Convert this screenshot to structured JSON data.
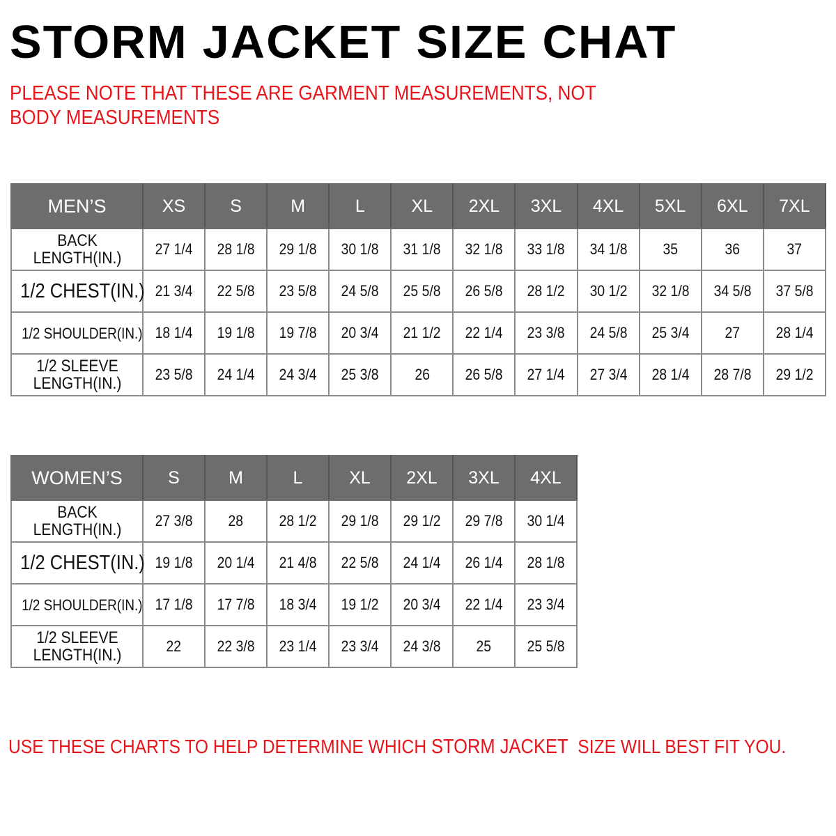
{
  "title": "STORM JACKET SIZE CHAT",
  "note": "PLEASE NOTE THAT THESE ARE GARMENT MEASUREMENTS, NOT BODY MEASUREMENTS",
  "colors": {
    "header_bg": "#6d6d6d",
    "note_red": "#e8141b"
  },
  "mens": {
    "label": "MEN’S",
    "sizes": [
      "XS",
      "S",
      "M",
      "L",
      "XL",
      "2XL",
      "3XL",
      "4XL",
      "5XL",
      "6XL",
      "7XL"
    ],
    "rows": [
      {
        "label": "BACK LENGTH(IN.)",
        "values": [
          "27 1/4",
          "28 1/8",
          "29 1/8",
          "30 1/8",
          "31 1/8",
          "32 1/8",
          "33 1/8",
          "34 1/8",
          "35",
          "36",
          "37"
        ]
      },
      {
        "label": "1/2 CHEST(IN.)",
        "values": [
          "21 3/4",
          "22 5/8",
          "23 5/8",
          "24 5/8",
          "25 5/8",
          "26 5/8",
          "28 1/2",
          "30 1/2",
          "32 1/8",
          "34 5/8",
          "37 5/8"
        ]
      },
      {
        "label": "1/2 SHOULDER(IN.)",
        "values": [
          "18 1/4",
          "19 1/8",
          "19 7/8",
          "20 3/4",
          "21 1/2",
          "22 1/4",
          "23 3/8",
          "24 5/8",
          "25 3/4",
          "27",
          "28 1/4"
        ]
      },
      {
        "label": "1/2 SLEEVE LENGTH(IN.)",
        "values": [
          "23 5/8",
          "24 1/4",
          "24 3/4",
          "25 3/8",
          "26",
          "26 5/8",
          "27 1/4",
          "27 3/4",
          "28 1/4",
          "28 7/8",
          "29 1/2"
        ]
      }
    ]
  },
  "womens": {
    "label": "WOMEN’S",
    "sizes": [
      "S",
      "M",
      "L",
      "XL",
      "2XL",
      "3XL",
      "4XL"
    ],
    "rows": [
      {
        "label": "BACK LENGTH(IN.)",
        "values": [
          "27 3/8",
          "28",
          "28 1/2",
          "29 1/8",
          "29 1/2",
          "29 7/8",
          "30 1/4"
        ]
      },
      {
        "label": "1/2 CHEST(IN.)",
        "values": [
          "19 1/8",
          "20 1/4",
          "21 4/8",
          "22 5/8",
          "24 1/4",
          "26 1/4",
          "28 1/8"
        ]
      },
      {
        "label": "1/2 SHOULDER(IN.)",
        "values": [
          "17 1/8",
          "17 7/8",
          "18 3/4",
          "19 1/2",
          "20 3/4",
          "22 1/4",
          "23 3/4"
        ]
      },
      {
        "label": "1/2 SLEEVE LENGTH(IN.)",
        "values": [
          "22",
          "22 3/8",
          "23 1/4",
          "23 3/4",
          "24 3/8",
          "25",
          "25 5/8"
        ]
      }
    ]
  },
  "footer": {
    "before": "USE THESE CHARTS TO HELP DETERMINE WHICH ",
    "brand": "STORM JACKET",
    "after": "  SIZE WILL BEST FIT YOU."
  }
}
